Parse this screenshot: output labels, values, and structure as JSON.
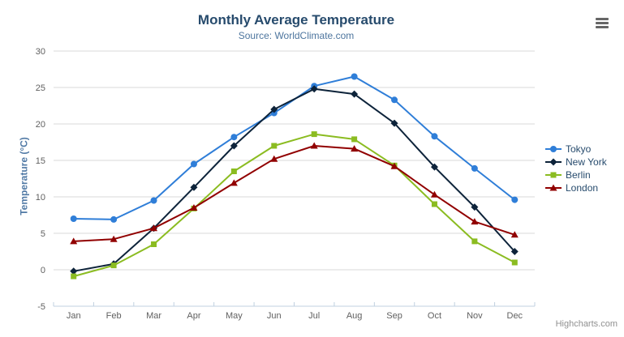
{
  "header": {
    "export_menu_icon": "hamburger-icon"
  },
  "credits": {
    "label": "Highcharts.com"
  },
  "colors": {
    "title": "#274b6d",
    "subtitle": "#4d759e",
    "axis_title": "#5079a5",
    "axis_label": "#606060",
    "grid_line": "#d8d8d8",
    "x_axis_line": "#c0d0e0",
    "legend_text": "#274b6d",
    "credits_text": "#909090",
    "menu_icon": "#666666"
  },
  "chart_data": {
    "type": "line",
    "title": "Monthly Average Temperature",
    "subtitle": "Source: WorldClimate.com",
    "xlabel": "",
    "ylabel": "Temperature (°C)",
    "ylim": [
      -5,
      30
    ],
    "ytick_step": 5,
    "ytick_labels": [
      "-5",
      "0",
      "5",
      "10",
      "15",
      "20",
      "25",
      "30"
    ],
    "grid": "horizontal",
    "legend_position": "right",
    "categories": [
      "Jan",
      "Feb",
      "Mar",
      "Apr",
      "May",
      "Jun",
      "Jul",
      "Aug",
      "Sep",
      "Oct",
      "Nov",
      "Dec"
    ],
    "series": [
      {
        "name": "Tokyo",
        "color": "#2f7ed8",
        "marker": "circle",
        "values": [
          7.0,
          6.9,
          9.5,
          14.5,
          18.2,
          21.5,
          25.2,
          26.5,
          23.3,
          18.3,
          13.9,
          9.6
        ]
      },
      {
        "name": "New York",
        "color": "#0d233a",
        "marker": "diamond",
        "values": [
          -0.2,
          0.8,
          5.7,
          11.3,
          17.0,
          22.0,
          24.8,
          24.1,
          20.1,
          14.1,
          8.6,
          2.5
        ]
      },
      {
        "name": "Berlin",
        "color": "#8bbc21",
        "marker": "square",
        "values": [
          -0.9,
          0.6,
          3.5,
          8.4,
          13.5,
          17.0,
          18.6,
          17.9,
          14.3,
          9.0,
          3.9,
          1.0
        ]
      },
      {
        "name": "London",
        "color": "#910000",
        "marker": "triangle",
        "values": [
          3.9,
          4.2,
          5.7,
          8.5,
          11.9,
          15.2,
          17.0,
          16.6,
          14.2,
          10.3,
          6.6,
          4.8
        ]
      }
    ]
  }
}
